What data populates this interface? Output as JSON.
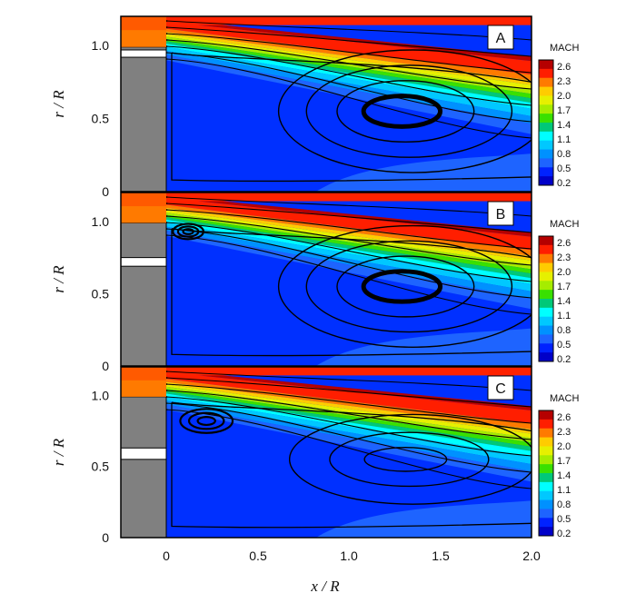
{
  "chart_data": {
    "type": "contour",
    "xlabel": "x / R",
    "ylabel": "r / R",
    "xlim": [
      -0.25,
      2.0
    ],
    "ylim": [
      0,
      1.2
    ],
    "x_ticks": [
      "0",
      "0.5",
      "1.0",
      "1.5",
      "2.0"
    ],
    "y_ticks": [
      "0",
      "0.5",
      "1.0"
    ],
    "colorbar": {
      "title": "MACH",
      "levels": [
        "2.6",
        "2.3",
        "2.0",
        "1.7",
        "1.4",
        "1.1",
        "0.8",
        "0.5",
        "0.2"
      ],
      "colors": [
        "#b50000",
        "#ff1e00",
        "#ff7a00",
        "#ffcc00",
        "#e6f000",
        "#a6ec00",
        "#39e000",
        "#00c878",
        "#00ffff",
        "#00c8ff",
        "#0091ff",
        "#1e64ff",
        "#0022ff",
        "#0000c8"
      ]
    },
    "panels": [
      {
        "label": "A",
        "slot_r": [
          0.92,
          0.97
        ]
      },
      {
        "label": "B",
        "slot_r": [
          0.69,
          0.75
        ]
      },
      {
        "label": "C",
        "slot_r": [
          0.55,
          0.63
        ]
      }
    ]
  }
}
